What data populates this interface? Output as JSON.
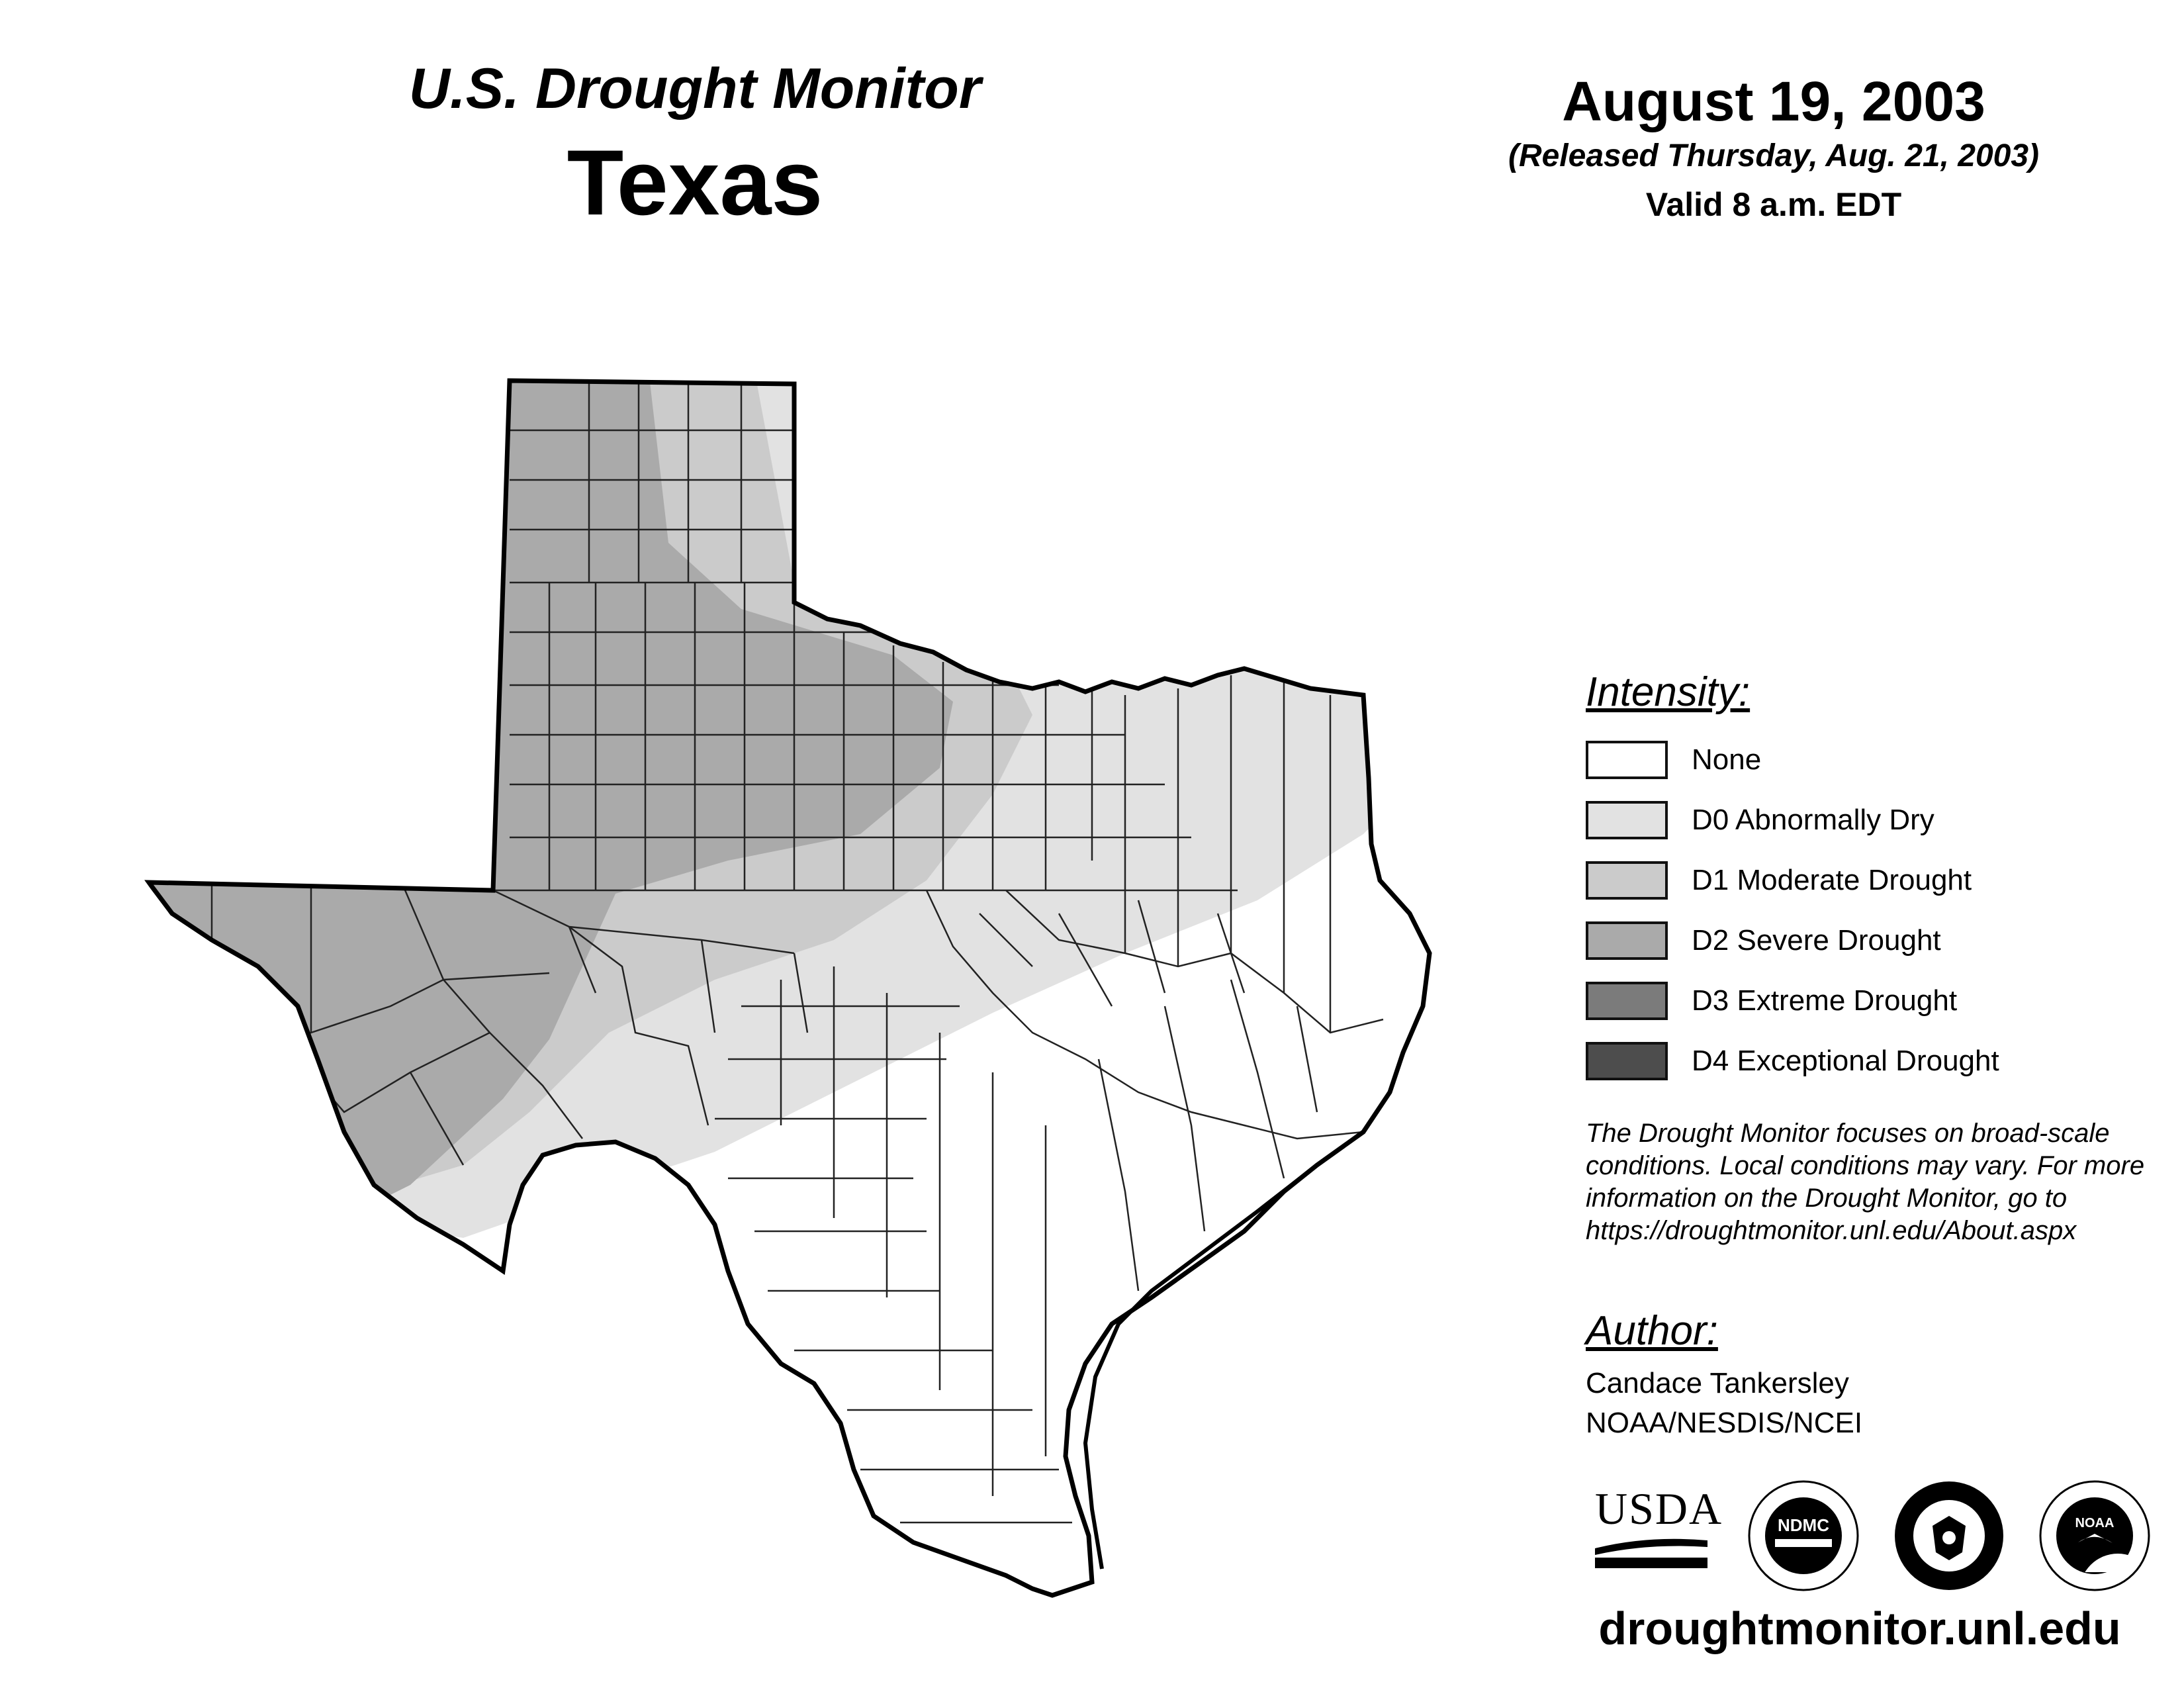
{
  "header": {
    "product": "U.S. Drought Monitor",
    "region": "Texas",
    "date": "August 19, 2003",
    "released": "(Released Thursday, Aug. 21, 2003)",
    "valid": "Valid 8 a.m. EDT"
  },
  "legend": {
    "title": "Intensity:",
    "items": [
      {
        "label": "None",
        "color": "#ffffff"
      },
      {
        "label": "D0 Abnormally Dry",
        "color": "#e2e2e2"
      },
      {
        "label": "D1 Moderate Drought",
        "color": "#cbcbcb"
      },
      {
        "label": "D2 Severe Drought",
        "color": "#aaaaaa"
      },
      {
        "label": "D3 Extreme Drought",
        "color": "#7b7b7b"
      },
      {
        "label": "D4 Exceptional Drought",
        "color": "#4d4d4d"
      }
    ]
  },
  "note": "The Drought Monitor focuses on broad-scale conditions. Local conditions may vary. For more information on the Drought Monitor, go to https://droughtmonitor.unl.edu/About.aspx",
  "author": {
    "title": "Author:",
    "name": "Candace Tankersley",
    "org": "NOAA/NESDIS/NCEI"
  },
  "logos": {
    "usda": "USDA",
    "ndmc": "NDMC",
    "noaa": "NOAA"
  },
  "footer_url": "droughtmonitor.unl.edu",
  "map": {
    "state": "Texas",
    "categories_present": [
      "None",
      "D0 Abnormally Dry",
      "D1 Moderate Drought",
      "D2 Severe Drought"
    ],
    "boundary_color": "#000000",
    "county_line_color": "#222222"
  }
}
